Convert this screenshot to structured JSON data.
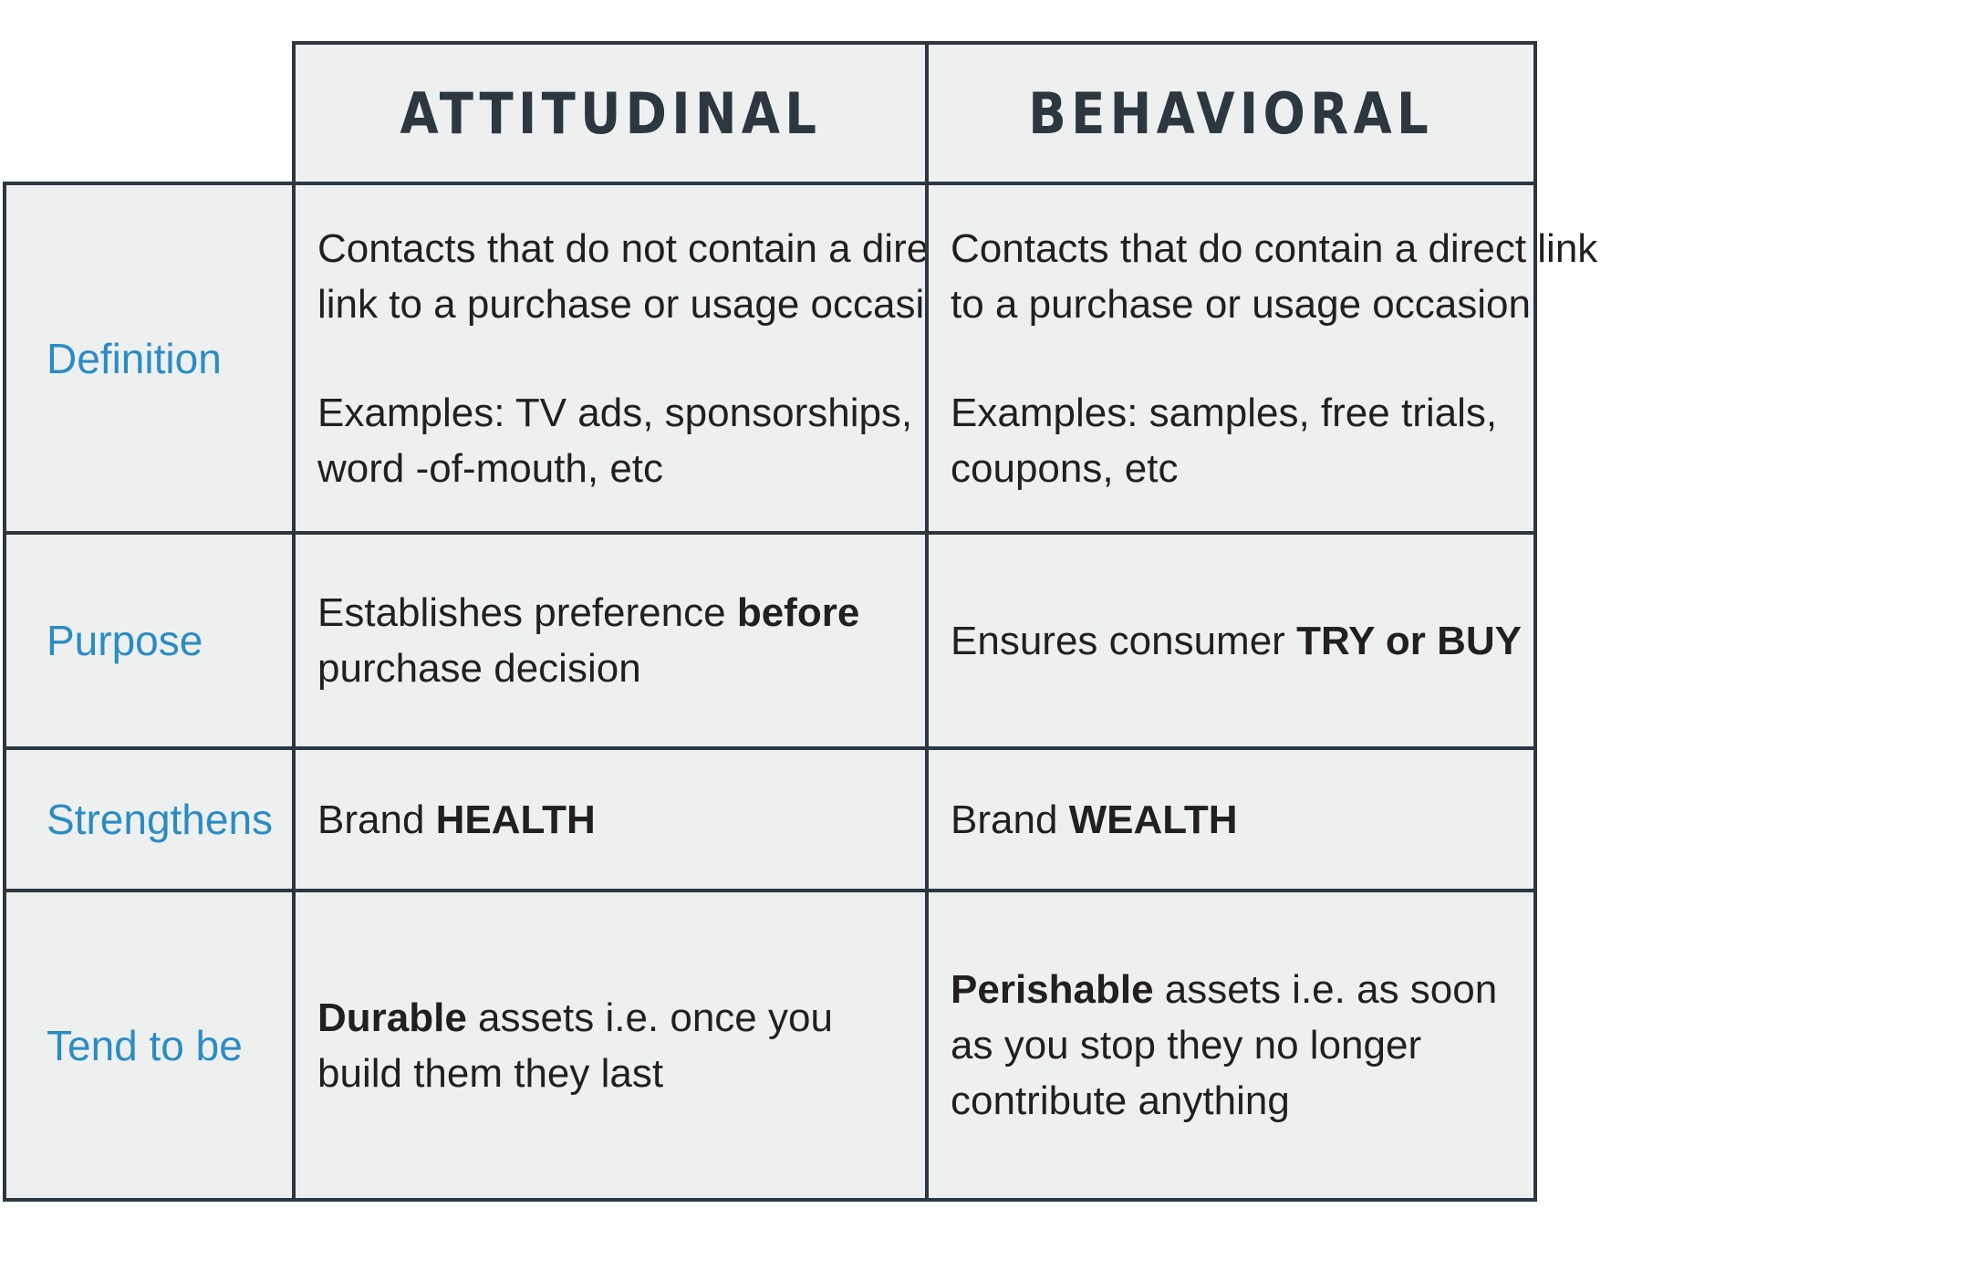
{
  "columns": {
    "attitudinal": "ATTITUDINAL",
    "behavioral": "BEHAVIORAL"
  },
  "rows": {
    "definition": {
      "label": "Definition",
      "attitudinal": {
        "p1_line1": "Contacts that do not contain a direct",
        "p1_line2": "link to a purchase or usage occasion",
        "p2_line1": "Examples: TV ads, sponsorships,",
        "p2_line2": "word -of-mouth, etc"
      },
      "behavioral": {
        "p1_line1": "Contacts that do contain a direct link",
        "p1_line2": "to a purchase or usage occasion",
        "p2_line1": "Examples: samples, free trials,",
        "p2_line2": "coupons, etc"
      }
    },
    "purpose": {
      "label": "Purpose",
      "attitudinal": {
        "line1_pre": "Establishes preference ",
        "line1_bold": "before",
        "line2": "purchase decision"
      },
      "behavioral": {
        "pre": "Ensures consumer ",
        "bold": "TRY or BUY"
      }
    },
    "strengthens": {
      "label": "Strengthens",
      "attitudinal": {
        "pre": "Brand ",
        "bold": "HEALTH"
      },
      "behavioral": {
        "pre": "Brand ",
        "bold": "WEALTH"
      }
    },
    "tend": {
      "label": "Tend to be",
      "attitudinal": {
        "line1_bold": "Durable",
        "line1_rest": " assets i.e. once you",
        "line2": "build them they last"
      },
      "behavioral": {
        "line1_bold": "Perishable",
        "line1_rest": " assets i.e. as soon",
        "line2": "as you stop they no longer",
        "line3": "contribute anything"
      }
    }
  },
  "colors": {
    "border": "#2c3740",
    "cell_background": "#eef0f0",
    "row_label": "#2b8cc4",
    "body_text": "#231f20",
    "header_text": "#2c3740"
  }
}
